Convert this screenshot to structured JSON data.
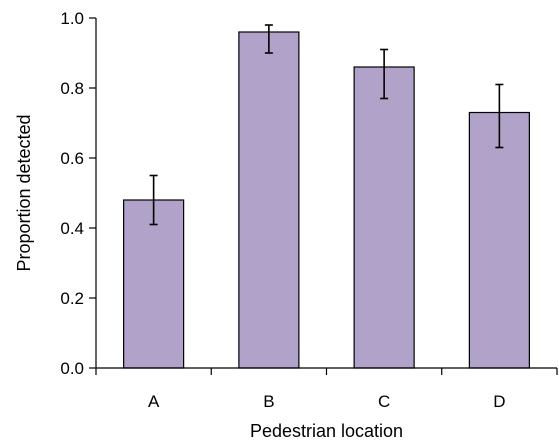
{
  "chart_data": {
    "type": "bar",
    "xlabel": "Pedestrian location",
    "ylabel": "Proportion detected",
    "categories": [
      "A",
      "B",
      "C",
      "D"
    ],
    "values": [
      0.48,
      0.96,
      0.86,
      0.73
    ],
    "error_low": [
      0.41,
      0.9,
      0.77,
      0.63
    ],
    "error_high": [
      0.55,
      0.98,
      0.91,
      0.81
    ],
    "ylim": [
      0.0,
      1.0
    ],
    "yticks": [
      "0.0",
      "0.2",
      "0.4",
      "0.6",
      "0.8",
      "1.0"
    ],
    "grid": false,
    "bar_color": "#b0a2c9"
  }
}
